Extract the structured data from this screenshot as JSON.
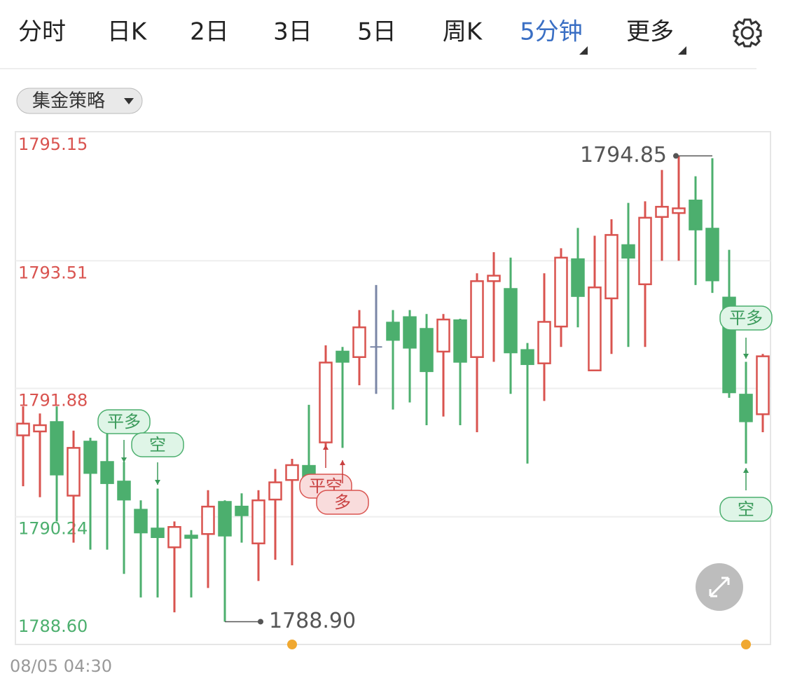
{
  "tabs": [
    "分时",
    "日K",
    "2日",
    "3日",
    "5日",
    "周K",
    "5分钟",
    "更多"
  ],
  "active_tab": 6,
  "strategy_button": "集金策略",
  "chart_data": {
    "type": "candlestick",
    "up_color": "#d9534f",
    "down_color": "#4caf6e",
    "flat_color": "#7a86a6",
    "ylim": [
      1788.6,
      1795.15
    ],
    "yticks": [
      1795.15,
      1793.51,
      1791.88,
      1790.24,
      {
        "value": 1788.6,
        "label": "1788.60"
      }
    ],
    "ytick_colors": [
      "#d9534f",
      "#d9534f",
      "#d9534f",
      "#4caf6e",
      "#4caf6e"
    ],
    "grid": true,
    "x_start_label": "08/05 04:30",
    "open": [
      1791.28,
      1791.33,
      1791.45,
      1790.51,
      1791.2,
      1790.94,
      1790.69,
      1790.33,
      1790.09,
      1789.85,
      1790.0,
      1790.02,
      1790.43,
      1790.37,
      1789.9,
      1790.46,
      1790.71,
      1790.89,
      1791.19,
      1792.35,
      1792.28,
      1792.41,
      1792.72,
      1792.79,
      1792.64,
      1792.35,
      1792.75,
      1792.28,
      1793.25,
      1793.15,
      1792.37,
      1792.2,
      1792.67,
      1793.53,
      1792.11,
      1793.03,
      1793.71,
      1793.21,
      1794.07,
      1794.12,
      1794.28,
      1793.92,
      1793.04,
      1791.8,
      1791.55
    ],
    "high": [
      1791.65,
      1791.56,
      1791.65,
      1791.34,
      1791.25,
      1791.39,
      1790.94,
      1790.45,
      1790.6,
      1790.18,
      1790.07,
      1790.58,
      1790.45,
      1790.54,
      1790.58,
      1790.85,
      1790.98,
      1791.67,
      1792.43,
      1792.41,
      1792.88,
      1793.2,
      1792.88,
      1792.88,
      1792.83,
      1792.83,
      1792.77,
      1793.35,
      1793.62,
      1793.55,
      1792.46,
      1793.35,
      1793.67,
      1793.93,
      1793.83,
      1794.04,
      1794.25,
      1794.27,
      1794.67,
      1794.85,
      1794.59,
      1794.82,
      1793.65,
      1792.22,
      1792.32
    ],
    "low": [
      1790.63,
      1790.49,
      1790.18,
      1789.91,
      1789.82,
      1789.82,
      1789.51,
      1789.21,
      1789.21,
      1789.02,
      1789.21,
      1789.33,
      1788.9,
      1789.91,
      1789.42,
      1789.69,
      1789.62,
      1790.54,
      1791.12,
      1791.12,
      1791.92,
      1791.81,
      1791.61,
      1791.7,
      1791.41,
      1791.52,
      1791.41,
      1791.32,
      1792.22,
      1791.81,
      1790.92,
      1791.72,
      1792.41,
      1792.66,
      1792.11,
      1792.32,
      1792.41,
      1792.41,
      1793.51,
      1793.51,
      1793.2,
      1793.1,
      1791.76,
      1790.92,
      1791.32
    ],
    "close": [
      1791.43,
      1791.41,
      1790.78,
      1791.12,
      1790.8,
      1790.67,
      1790.46,
      1790.04,
      1789.98,
      1790.11,
      1789.97,
      1790.37,
      1790.0,
      1790.26,
      1790.45,
      1790.68,
      1790.9,
      1790.61,
      1792.21,
      1792.22,
      1792.66,
      1792.41,
      1792.5,
      1792.4,
      1792.1,
      1792.76,
      1792.22,
      1793.25,
      1793.32,
      1792.34,
      1792.19,
      1792.73,
      1793.55,
      1793.06,
      1793.17,
      1793.84,
      1793.55,
      1794.06,
      1794.2,
      1794.18,
      1793.91,
      1793.26,
      1791.83,
      1791.46,
      1792.29
    ],
    "high_annotation": 1794.85,
    "low_annotation": {
      "value": 1788.9,
      "label": "1788.90"
    },
    "signals": [
      {
        "text": "平多",
        "color": "#3a9a5a"
      },
      {
        "text": "空",
        "color": "#3a9a5a"
      },
      {
        "text": "平空",
        "color": "#c94040"
      },
      {
        "text": "多",
        "color": "#c94040"
      },
      {
        "text": "平多",
        "color": "#3a9a5a"
      },
      {
        "text": "空",
        "color": "#3a9a5a"
      }
    ]
  }
}
